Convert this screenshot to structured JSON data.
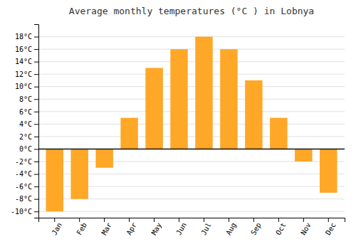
{
  "chart_data": {
    "type": "bar",
    "title": "Average monthly temperatures (°C ) in Lobnya",
    "categories": [
      "Jan",
      "Feb",
      "Mar",
      "Apr",
      "May",
      "Jun",
      "Jul",
      "Aug",
      "Sep",
      "Oct",
      "Nov",
      "Dec"
    ],
    "values": [
      -10,
      -8,
      -3,
      5,
      13,
      16,
      18,
      16,
      11,
      5,
      -2,
      -7
    ],
    "color": "#FFA726",
    "ylim": [
      -11,
      20
    ],
    "yticks": [
      {
        "value": -10,
        "label": "-10°C"
      },
      {
        "value": -8,
        "label": "-8°C"
      },
      {
        "value": -6,
        "label": "-6°C"
      },
      {
        "value": -4,
        "label": "-4°C"
      },
      {
        "value": -2,
        "label": "-2°C"
      },
      {
        "value": 0,
        "label": "0°C"
      },
      {
        "value": 2,
        "label": "2°C"
      },
      {
        "value": 4,
        "label": "4°C"
      },
      {
        "value": 6,
        "label": "6°C"
      },
      {
        "value": 8,
        "label": "8°C"
      },
      {
        "value": 10,
        "label": "10°C"
      },
      {
        "value": 12,
        "label": "12°C"
      },
      {
        "value": 14,
        "label": "14°C"
      },
      {
        "value": 16,
        "label": "16°C"
      },
      {
        "value": 18,
        "label": "18°C"
      }
    ],
    "grid": true
  }
}
